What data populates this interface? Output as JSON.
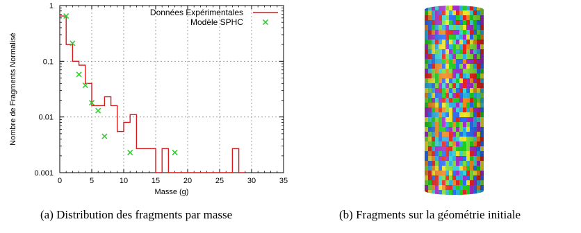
{
  "chart_data": {
    "type": "line",
    "xlabel": "Masse (g)",
    "ylabel": "Nombre de Fragments Normalisé",
    "yscale": "log",
    "xlim": [
      0,
      35
    ],
    "ylim": [
      0.001,
      1
    ],
    "x_ticks": [
      0,
      5,
      10,
      15,
      20,
      25,
      30,
      35
    ],
    "y_ticks": [
      0.001,
      0.01,
      0.1,
      1
    ],
    "y_tick_labels": [
      "0.001",
      "0.01",
      "0.1",
      "1"
    ],
    "grid": true,
    "legend_position": "top-right",
    "series": [
      {
        "name": "Données Expérimentales",
        "style": "step",
        "color": "#d7191c",
        "x": [
          0,
          1,
          2,
          3,
          4,
          5,
          6,
          7,
          8,
          9,
          10,
          11,
          12,
          13,
          14,
          15,
          16,
          17,
          18,
          19,
          20,
          21,
          22,
          23,
          24,
          25,
          26,
          27,
          28
        ],
        "y": [
          0.65,
          0.2,
          0.1,
          0.085,
          0.04,
          0.016,
          0.016,
          0.023,
          0.016,
          0.0055,
          0.008,
          0.011,
          0.0027,
          0.0027,
          0.0027,
          0.001,
          0.0027,
          0.001,
          0.001,
          0.001,
          0.001,
          0.001,
          0.001,
          0.001,
          0.001,
          0.001,
          0.001,
          0.0027,
          0.001
        ]
      },
      {
        "name": "Modèle SPHC",
        "style": "points",
        "marker": "x",
        "color": "#33cc33",
        "x": [
          1,
          2,
          3,
          4,
          5,
          6,
          7,
          11,
          18
        ],
        "y": [
          0.65,
          0.21,
          0.058,
          0.037,
          0.018,
          0.013,
          0.0045,
          0.0023,
          0.0023
        ]
      }
    ]
  },
  "captions": {
    "a": "(a)  Distribution des fragments par masse",
    "b": "(b)  Fragments sur la géométrie initiale"
  },
  "render_b": {
    "description_colors": [
      "#2a6cf5",
      "#1ecf1e",
      "#39d6d6",
      "#f0e62a",
      "#f08a1e",
      "#e8231c",
      "#a52aca",
      "#7ddf3a",
      "#2ab0e6"
    ]
  }
}
